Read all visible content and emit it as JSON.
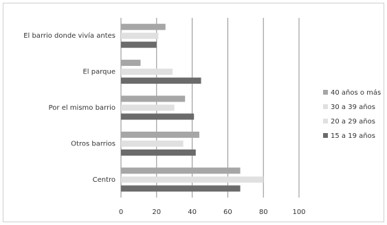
{
  "chart_data": {
    "type": "bar",
    "orientation": "horizontal",
    "categories": [
      "El barrio donde vivía antes",
      "El parque",
      "Por el mismo barrio",
      "Otros barrios",
      "Centro"
    ],
    "series": [
      {
        "name": "40 años o más",
        "values": [
          25,
          11,
          36,
          44,
          67
        ],
        "color": "#a6a6a6"
      },
      {
        "name": "30 a 39 años",
        "values": [
          21,
          29,
          30,
          35,
          80
        ],
        "color": "#e0e0e0"
      },
      {
        "name": "20 a 29 años",
        "values": [
          21,
          29,
          30,
          35,
          80
        ],
        "color": "#e0e0e0"
      },
      {
        "name": "15 a 19 años",
        "values": [
          20,
          45,
          41,
          42,
          67
        ],
        "color": "#6b6b6b"
      }
    ],
    "legend_order": [
      "40 años o más",
      "30 a 39 años",
      "20 a 29 años",
      "15 a 19 años"
    ],
    "xticks": [
      "0",
      "20",
      "40",
      "60",
      "80",
      "100"
    ],
    "xlim": [
      0,
      100
    ],
    "grid": true,
    "legend_position": "right"
  }
}
